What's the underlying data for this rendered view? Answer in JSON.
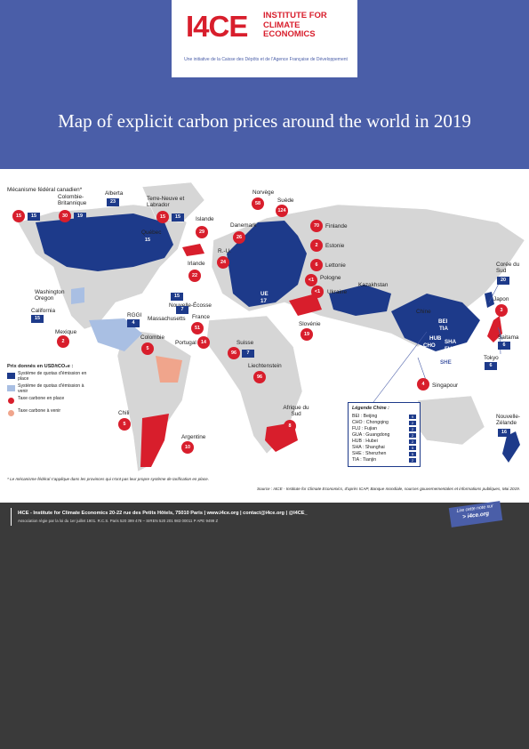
{
  "header": {
    "logo_main": "I4CE",
    "logo_name": "INSTITUTE FOR CLIMATE ECONOMICS",
    "logo_tagline": "Une initiative de la Caisse des Dépôts et de l'Agence Française de Développement",
    "title": "Map of explicit carbon prices around the world in 2019"
  },
  "colors": {
    "header_bg": "#4a5ea8",
    "ets_in_place": "#1d3a8a",
    "ets_planned": "#a9bfe3",
    "tax_in_place": "#d81e2c",
    "tax_planned": "#f0a58c",
    "footer_bg": "#3a3a3a"
  },
  "labels": {
    "mecanisme": "Mécanisme fédéral canadien*",
    "colombie_brit": "Colombie-Britannique",
    "alberta": "Alberta",
    "terre_neuve": "Terre-Neuve et Labrador",
    "islande": "Islande",
    "norvege": "Norvège",
    "suede": "Suède",
    "finlande": "Finlande",
    "estonie": "Estonie",
    "lettonie": "Lettonie",
    "pologne": "Pologne",
    "ukraine": "Ukraine",
    "danemark": "Danemark",
    "ru": "R.-U.",
    "irlande": "Irlande",
    "quebec": "Québec",
    "nouvelle_ecosse": "Nouvelle-Écosse",
    "massachusetts": "Massachusetts",
    "rggi": "RGGI",
    "washington_oregon": "Washington Oregon",
    "california": "California",
    "mexique": "Mexique",
    "colombie": "Colombie",
    "france": "France",
    "portugal": "Portugal",
    "suisse": "Suisse",
    "liechtenstein": "Liechtenstein",
    "slovenie": "Slovénie",
    "kazakhstan": "Kazakhstan",
    "chine": "Chine",
    "coree": "Corée du Sud",
    "japon": "Japon",
    "saitama": "Saitama",
    "tokyo": "Tokyo",
    "singapour": "Singapour",
    "nz": "Nouvelle-Zélande",
    "afrique_sud": "Afrique du Sud",
    "argentine": "Argentine",
    "chili": "Chili",
    "ue": "UE",
    "bei": "BEI",
    "tia": "TIA",
    "hub": "HUB",
    "cho": "CHO",
    "sha": "SHA",
    "fuj": "FUJ",
    "gua": "GUA",
    "she": "SHE"
  },
  "values": {
    "mecanisme_tax": "15",
    "mecanisme_ets": "15",
    "colombie_brit_tax": "30",
    "colombie_brit_ets": "19",
    "alberta_ets": "23",
    "terre_neuve_tax": "15",
    "terre_neuve_ets": "15",
    "islande": "29",
    "norvege": "58",
    "suede": "124",
    "finlande": "70",
    "estonie": "2",
    "lettonie": "6",
    "pologne": "<1",
    "ukraine": "<1",
    "danemark": "26",
    "ru": "24",
    "irlande": "22",
    "quebec": "15",
    "nouvelle_ecosse": "15",
    "massachusetts": "7",
    "rggi": "4",
    "california": "15",
    "mexique": "2",
    "colombie": "5",
    "france": "51",
    "portugal": "14",
    "suisse_tax": "96",
    "suisse_ets": "7",
    "liechtenstein": "96",
    "slovenie": "19",
    "ue": "17",
    "coree": "20",
    "japon": "3",
    "saitama": "6",
    "tokyo": "6",
    "singapour": "4",
    "nz": "16",
    "afrique_sud": "8",
    "argentine": "10",
    "chili": "5"
  },
  "legend": {
    "title": "Prix donnés en USD/tCO₂e :",
    "ets_in_place": "Système de quotas d'émission en place",
    "ets_planned": "Système de quotas d'émission à venir",
    "tax_in_place": "Taxe carbone en place",
    "tax_planned": "Taxe carbone à venir"
  },
  "china_legend": {
    "title": "Légende Chine :",
    "rows": [
      {
        "label": "BEI : Beijing",
        "value": "9"
      },
      {
        "label": "CHO : Chongqing",
        "value": "2"
      },
      {
        "label": "FUJ : Fujian",
        "value": "2"
      },
      {
        "label": "GUA : Guangdong",
        "value": "2"
      },
      {
        "label": "HUB : Hubei",
        "value": "2"
      },
      {
        "label": "SHA : Shanghai",
        "value": "5"
      },
      {
        "label": "SHE : Shenzhen",
        "value": "5"
      },
      {
        "label": "TIA : Tianjin",
        "value": "2"
      }
    ]
  },
  "footnote": "* Le mécanisme fédéral s'applique dans les provinces qui n'ont pas leur propre système de tarification en place.",
  "source": "Source : I4CE - Institute for Climate Economics, d'après ICAP, Banque mondiale, sources gouvernementales et informations publiques, Mai 2019.",
  "footer": {
    "address": "I4CE - Institute for Climate Economics  20-22 rue des Petits Hôtels, 75010 Paris  |  www.i4ce.org  |  contact@i4ce.org  |  @I4CE_",
    "assoc": "Association régie par la loi du 1er juillet 1901.  R.C.S. Paris 520 399 478 – SIREN 520 201 983 00011 P APE 9499 Z",
    "read_note": "Lire cette note sur",
    "read_link": "> i4ce.org"
  }
}
